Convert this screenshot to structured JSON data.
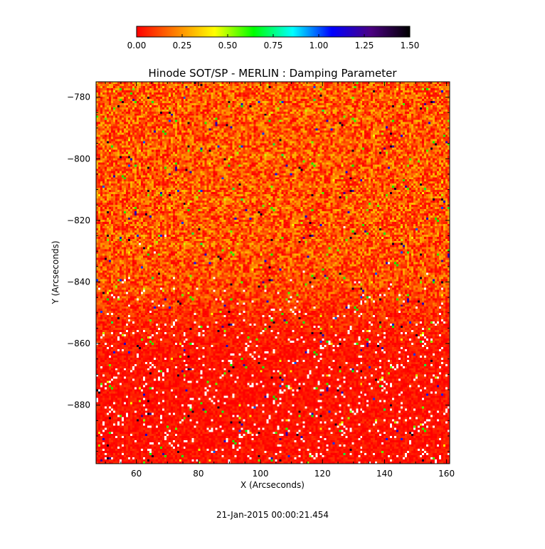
{
  "chart_data": {
    "type": "heatmap",
    "title": "Hinode SOT/SP - MERLIN : Damping Parameter",
    "xlabel": "X (Arcseconds)",
    "ylabel": "Y (Arcseconds)",
    "xlim": [
      47,
      161
    ],
    "ylim": [
      -899,
      -775
    ],
    "x_ticks": [
      60,
      80,
      100,
      120,
      140,
      160
    ],
    "x_tick_labels": [
      "60",
      "80",
      "100",
      "120",
      "140",
      "160"
    ],
    "y_ticks": [
      -780,
      -800,
      -820,
      -840,
      -860,
      -880
    ],
    "y_tick_labels": [
      "−780",
      "−800",
      "−820",
      "−840",
      "−860",
      "−880"
    ],
    "colorbar": {
      "colormap": "rainbow-reversed",
      "range": [
        0.0,
        1.5
      ],
      "ticks": [
        0.0,
        0.25,
        0.5,
        0.75,
        1.0,
        1.25,
        1.5
      ],
      "tick_labels": [
        "0.00",
        "0.25",
        "0.50",
        "0.75",
        "1.00",
        "1.25",
        "1.50"
      ],
      "colors": [
        "#ff0000",
        "#ff8000",
        "#ffff00",
        "#00ff00",
        "#00ffff",
        "#0000ff",
        "#4b0082",
        "#000000"
      ]
    },
    "value_distribution": {
      "upper_region_mean": 0.15,
      "lower_region_mean": 0.03,
      "transition_y": -848
    },
    "grid": false,
    "legend": "colorbar-top"
  },
  "footer": {
    "timestamp": "21-Jan-2015 00:00:21.454"
  }
}
